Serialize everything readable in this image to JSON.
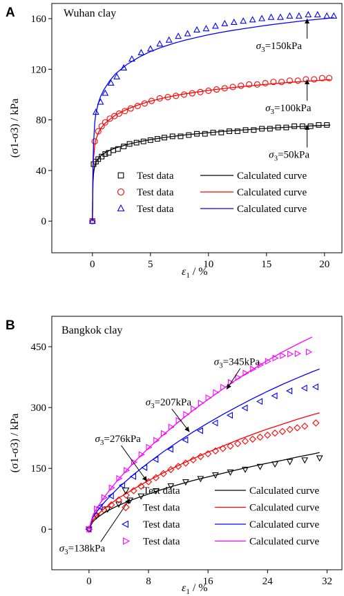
{
  "figure": {
    "panels": [
      {
        "letter": "A",
        "clay": "Wuhan clay",
        "xlabel_sym": "ε",
        "xlabel_sub": "1",
        "xlabel_unit": " / %",
        "ylabel": "(σ1-σ3) / kPa",
        "annotations": [
          {
            "text": "σ3=150kPa",
            "sym": "σ",
            "sub": "3",
            "rest": "=150kPa",
            "target_x": 18.5,
            "target_y": 160,
            "label_x": 14.1,
            "label_y": 136
          },
          {
            "text": "σ3=100kPa",
            "sym": "σ",
            "sub": "3",
            "rest": "=100kPa",
            "target_x": 18.5,
            "target_y": 112,
            "label_x": 14.9,
            "label_y": 87
          },
          {
            "text": "σ3=50kPa",
            "sym": "σ",
            "sub": "3",
            "rest": "=50kPa",
            "target_x": 18.5,
            "target_y": 76,
            "label_x": 15.2,
            "label_y": 50
          }
        ]
      },
      {
        "letter": "B",
        "clay": "Bangkok clay",
        "xlabel_sym": "ε",
        "xlabel_sub": "1",
        "xlabel_unit": " / %",
        "ylabel": "(σ1-σ3) / kPa",
        "annotations": [
          {
            "text": "σ3=345kPa",
            "sym": "σ",
            "sub": "3",
            "rest": "=345kPa",
            "target_x": 18.5,
            "target_y": 345,
            "label_x": 16.8,
            "label_y": 405
          },
          {
            "text": "σ3=207kPa",
            "sym": "σ",
            "sub": "3",
            "rest": "=207kPa",
            "target_x": 13.5,
            "target_y": 240,
            "label_x": 7.6,
            "label_y": 305
          },
          {
            "text": "σ3=276kPa",
            "sym": "σ",
            "sub": "3",
            "rest": "=276kPa",
            "target_x": 7.8,
            "target_y": 118,
            "label_x": 0.8,
            "label_y": 215
          },
          {
            "text": "σ3=138kPa",
            "sym": "σ",
            "sub": "3",
            "rest": "=138kPa",
            "target_x": 5.5,
            "target_y": 75,
            "label_x": -4.0,
            "label_y": -55
          }
        ]
      }
    ]
  },
  "chart_data": [
    {
      "type": "scatter",
      "title": "Wuhan clay",
      "xlabel": "ε1 / %",
      "ylabel": "(σ1-σ3) / kPa",
      "xlim": [
        -3.5,
        21.5
      ],
      "ylim": [
        -25,
        172
      ],
      "xticks": [
        0,
        5,
        10,
        15,
        20
      ],
      "yticks": [
        0,
        40,
        80,
        120,
        160
      ],
      "grid": false,
      "legend_position": "lower-right",
      "series": [
        {
          "name": "Test data",
          "kind": "points",
          "marker": "square",
          "color": "#000000",
          "x": [
            0,
            0.1,
            0.3,
            0.5,
            0.8,
            1.1,
            1.4,
            1.8,
            2.2,
            2.7,
            3.2,
            3.8,
            4.4,
            5.0,
            5.6,
            6.2,
            6.9,
            7.6,
            8.3,
            9.0,
            9.7,
            10.4,
            11.1,
            11.8,
            12.5,
            13.2,
            13.9,
            14.6,
            15.3,
            16.0,
            16.7,
            17.4,
            18.1,
            18.8,
            19.5,
            20.2
          ],
          "y": [
            0,
            45,
            47,
            49,
            51,
            53,
            54,
            56,
            57,
            59,
            61,
            62,
            63,
            64,
            65,
            66,
            67,
            67,
            68,
            69,
            69,
            70,
            70,
            71,
            71,
            72,
            72,
            73,
            73,
            74,
            74,
            75,
            75,
            75,
            76,
            76
          ]
        },
        {
          "name": "Test data",
          "kind": "points",
          "marker": "circle",
          "color": "#ff0000",
          "x": [
            0,
            0.2,
            0.5,
            0.8,
            1.1,
            1.5,
            1.9,
            2.3,
            2.8,
            3.3,
            3.9,
            4.5,
            5.1,
            5.8,
            6.5,
            7.2,
            7.9,
            8.6,
            9.3,
            10.0,
            10.7,
            11.4,
            12.1,
            12.8,
            13.5,
            14.2,
            14.9,
            15.6,
            16.3,
            17.0,
            17.7,
            18.4,
            19.1,
            19.8,
            20.4
          ],
          "y": [
            0,
            63,
            71,
            75,
            78,
            81,
            83,
            85,
            87,
            89,
            91,
            93,
            95,
            97,
            98,
            99,
            100,
            101,
            102,
            103,
            104,
            105,
            106,
            107,
            108,
            108,
            109,
            110,
            110,
            111,
            111,
            112,
            112,
            113,
            113
          ]
        },
        {
          "name": "Test data",
          "kind": "points",
          "marker": "triangle-up",
          "color": "#0000ff",
          "x": [
            0,
            0.3,
            0.7,
            1.1,
            1.6,
            2.1,
            2.7,
            3.4,
            4.2,
            5.0,
            5.8,
            6.6,
            7.4,
            8.2,
            9.0,
            9.8,
            10.6,
            11.4,
            12.2,
            13.0,
            13.8,
            14.6,
            15.4,
            16.2,
            17.0,
            17.8,
            18.6,
            19.4,
            20.2,
            20.8
          ],
          "y": [
            0,
            86,
            94,
            101,
            109,
            114,
            121,
            128,
            133,
            136,
            140,
            143,
            146,
            148,
            151,
            152,
            154,
            156,
            157,
            158,
            159,
            160,
            161,
            161,
            162,
            162,
            163,
            163,
            162,
            162
          ]
        },
        {
          "name": "Calculated curve",
          "kind": "line",
          "color": "#000000",
          "x": [
            0,
            0.05,
            0.1,
            0.2,
            0.3,
            0.5,
            0.7,
            1.0,
            1.5,
            2.0,
            3.0,
            4.0,
            5.0,
            6.0,
            7.0,
            8.0,
            9.0,
            10.0,
            11.0,
            12.0,
            13.0,
            14.0,
            15.0,
            16.0,
            17.0,
            18.0,
            19.0,
            20.0,
            20.5
          ],
          "y": [
            0,
            30,
            38,
            44,
            46.5,
            49.5,
            51.5,
            53.5,
            56,
            57.8,
            60.5,
            62.7,
            64.4,
            65.8,
            67,
            68.1,
            69,
            69.9,
            70.7,
            71.4,
            72.1,
            72.7,
            73.3,
            73.8,
            74.3,
            74.8,
            75.3,
            75.7,
            75.9
          ]
        },
        {
          "name": "Calculated curve",
          "kind": "line",
          "color": "#ff0000",
          "x": [
            0,
            0.05,
            0.1,
            0.2,
            0.3,
            0.5,
            0.7,
            1.0,
            1.5,
            2.0,
            3.0,
            4.0,
            5.0,
            6.0,
            7.0,
            8.0,
            9.0,
            10.0,
            11.0,
            12.0,
            13.0,
            14.0,
            15.0,
            16.0,
            17.0,
            18.0,
            19.0,
            20.0,
            20.5
          ],
          "y": [
            0,
            38,
            50,
            60,
            64.5,
            69.5,
            73,
            76.5,
            80.5,
            83.8,
            88.5,
            92,
            94.8,
            97,
            99,
            100.6,
            102,
            103.3,
            104.4,
            105.5,
            106.4,
            107.3,
            108.1,
            108.9,
            109.6,
            110.3,
            110.9,
            111.5,
            111.8
          ]
        },
        {
          "name": "Calculated curve",
          "kind": "line",
          "color": "#0000ff",
          "x": [
            0,
            0.05,
            0.1,
            0.2,
            0.3,
            0.5,
            0.7,
            1.0,
            1.5,
            2.0,
            3.0,
            4.0,
            5.0,
            6.0,
            7.0,
            8.0,
            9.0,
            10.0,
            11.0,
            12.0,
            13.0,
            14.0,
            15.0,
            16.0,
            17.0,
            18.0,
            19.0,
            20.0,
            20.8
          ],
          "y": [
            0,
            45,
            62,
            78,
            85,
            93,
            98.5,
            104,
            111,
            116.5,
            124,
            129.5,
            134,
            137.5,
            140.5,
            143,
            145.2,
            147.2,
            149,
            150.6,
            152,
            153.4,
            154.7,
            155.9,
            157,
            158.1,
            159.1,
            160,
            160.7
          ]
        }
      ]
    },
    {
      "type": "scatter",
      "title": "Bangkok clay",
      "xlabel": "ε1 / %",
      "ylabel": "(σ1-σ3) / kPa",
      "xlim": [
        -5,
        34
      ],
      "ylim": [
        -100,
        525
      ],
      "xticks": [
        0,
        8,
        16,
        24,
        32
      ],
      "yticks": [
        0,
        150,
        300,
        450
      ],
      "grid": false,
      "legend_position": "lower-right",
      "series": [
        {
          "name": "Test data",
          "kind": "points",
          "marker": "triangle-down",
          "color": "#000000",
          "x": [
            0,
            1,
            2.5,
            4,
            5.5,
            7,
            9,
            11,
            13,
            15,
            17,
            19,
            21,
            23,
            25,
            27,
            29,
            31
          ],
          "y": [
            0,
            33,
            50,
            62,
            72,
            82,
            95,
            107,
            117,
            125,
            134,
            141,
            148,
            155,
            161,
            167,
            171,
            176
          ]
        },
        {
          "name": "Test data",
          "kind": "points",
          "marker": "diamond",
          "color": "#ff0000",
          "x": [
            0,
            1,
            2,
            3,
            4,
            5,
            6,
            7,
            8,
            9,
            10,
            11,
            12,
            13,
            14,
            15,
            16,
            17,
            18,
            19,
            20,
            21,
            22,
            23,
            24,
            25,
            26,
            27,
            28,
            29,
            30.5
          ],
          "y": [
            0,
            35,
            48,
            60,
            72,
            84,
            95,
            106,
            117,
            127,
            137,
            147,
            155,
            163,
            171,
            179,
            186,
            193,
            199,
            205,
            211,
            217,
            222,
            227,
            232,
            237,
            241,
            246,
            250,
            254,
            262
          ]
        },
        {
          "name": "Test data",
          "kind": "points",
          "marker": "triangle-left",
          "color": "#0000ff",
          "x": [
            0,
            1.5,
            3,
            4.5,
            6,
            7.5,
            9,
            11,
            13,
            15,
            17,
            19,
            21,
            23,
            25,
            27,
            29,
            30.5
          ],
          "y": [
            0,
            55,
            82,
            108,
            130,
            152,
            172,
            197,
            220,
            243,
            262,
            281,
            299,
            315,
            329,
            341,
            348,
            351
          ]
        },
        {
          "name": "Test data",
          "kind": "points",
          "marker": "triangle-right",
          "color": "#ff00ff",
          "x": [
            0,
            1,
            2,
            3,
            4,
            5,
            6,
            7,
            8,
            9,
            10,
            11,
            12,
            13,
            14,
            15,
            16,
            17,
            18,
            19,
            20,
            21,
            22,
            23,
            24,
            25,
            26,
            27,
            28,
            29.5
          ],
          "y": [
            0,
            50,
            78,
            102,
            125,
            145,
            165,
            184,
            202,
            219,
            236,
            252,
            268,
            283,
            297,
            311,
            324,
            337,
            350,
            362,
            374,
            385,
            395,
            405,
            414,
            422,
            428,
            432,
            433,
            437
          ]
        },
        {
          "name": "Calculated curve",
          "kind": "line",
          "color": "#000000",
          "x": [
            0,
            0.5,
            1,
            2,
            3,
            4,
            6,
            8,
            10,
            12,
            14,
            16,
            18,
            20,
            22,
            24,
            26,
            28,
            30,
            31
          ],
          "y": [
            0,
            18,
            27,
            40,
            50,
            59,
            74,
            87,
            99,
            110,
            120,
            129,
            138,
            147,
            155,
            163,
            170,
            178,
            185,
            189
          ]
        },
        {
          "name": "Calculated curve",
          "kind": "line",
          "color": "#ff0000",
          "x": [
            0,
            0.5,
            1,
            2,
            3,
            4,
            6,
            8,
            10,
            12,
            14,
            16,
            18,
            20,
            22,
            24,
            26,
            28,
            30,
            31
          ],
          "y": [
            0,
            22,
            33,
            50,
            64,
            77,
            99,
            120,
            139,
            157,
            174,
            190,
            205,
            220,
            234,
            247,
            259,
            271,
            282,
            287
          ]
        },
        {
          "name": "Calculated curve",
          "kind": "line",
          "color": "#0000ff",
          "x": [
            0,
            0.5,
            1,
            2,
            3,
            4,
            6,
            8,
            10,
            12,
            14,
            16,
            18,
            20,
            22,
            24,
            26,
            28,
            30,
            31
          ],
          "y": [
            0,
            28,
            42,
            65,
            85,
            103,
            135,
            164,
            191,
            216,
            240,
            262,
            283,
            303,
            322,
            340,
            357,
            373,
            388,
            395
          ]
        },
        {
          "name": "Calculated curve",
          "kind": "line",
          "color": "#ff00ff",
          "x": [
            0,
            0.5,
            1,
            2,
            3,
            4,
            6,
            8,
            10,
            12,
            14,
            16,
            18,
            20,
            22,
            24,
            26,
            28,
            30
          ],
          "y": [
            0,
            33,
            50,
            78,
            102,
            124,
            164,
            200,
            233,
            264,
            293,
            320,
            346,
            371,
            394,
            416,
            437,
            456,
            474
          ]
        }
      ]
    }
  ]
}
